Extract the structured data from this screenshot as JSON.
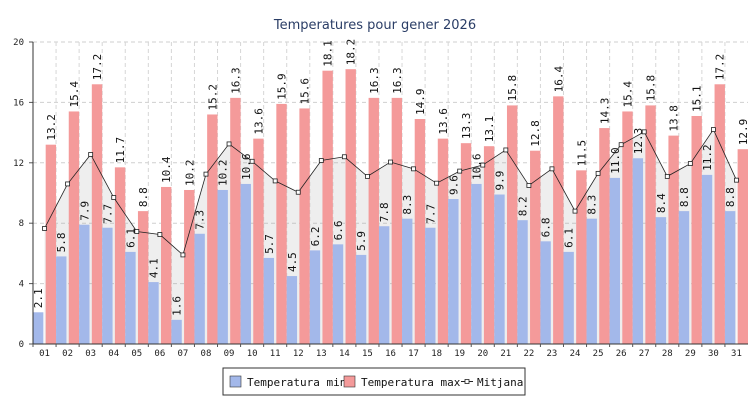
{
  "chart_data": {
    "type": "bar",
    "title": "Temperatures pour gener 2026",
    "xlabel": "",
    "ylabel": "",
    "ylim": [
      0,
      20
    ],
    "yticks": [
      0,
      4,
      8,
      12,
      16,
      20
    ],
    "grid": true,
    "legend_position": "bottom",
    "categories": [
      "01",
      "02",
      "03",
      "04",
      "05",
      "06",
      "07",
      "08",
      "09",
      "10",
      "11",
      "12",
      "13",
      "14",
      "15",
      "16",
      "17",
      "18",
      "19",
      "20",
      "21",
      "22",
      "23",
      "24",
      "25",
      "26",
      "27",
      "28",
      "29",
      "30",
      "31"
    ],
    "series": [
      {
        "name": "Temperatura min",
        "type": "bar",
        "color": "#a3b8ea",
        "values": [
          2.1,
          5.8,
          7.9,
          7.7,
          6.1,
          4.1,
          1.6,
          7.3,
          10.2,
          10.6,
          5.7,
          4.5,
          6.2,
          6.6,
          5.9,
          7.8,
          8.3,
          7.7,
          9.6,
          10.6,
          9.9,
          8.2,
          6.8,
          6.1,
          8.3,
          11.0,
          12.3,
          8.4,
          8.8,
          11.2,
          8.8
        ]
      },
      {
        "name": "Temperatura max",
        "type": "bar",
        "color": "#f49a9a",
        "values": [
          13.2,
          15.4,
          17.2,
          11.7,
          8.8,
          10.4,
          10.2,
          15.2,
          16.3,
          13.6,
          15.9,
          15.6,
          18.1,
          18.2,
          16.3,
          16.3,
          14.9,
          13.6,
          13.3,
          13.1,
          15.8,
          12.8,
          16.4,
          11.5,
          14.3,
          15.4,
          15.8,
          13.8,
          15.1,
          17.2,
          12.9
        ]
      },
      {
        "name": "Mitjana",
        "type": "line",
        "color": "#222222",
        "values": [
          7.65,
          10.6,
          12.55,
          9.7,
          7.45,
          7.25,
          5.9,
          11.25,
          13.25,
          12.1,
          10.8,
          10.05,
          12.15,
          12.4,
          11.1,
          12.05,
          11.6,
          10.65,
          11.45,
          11.85,
          12.85,
          10.5,
          11.6,
          8.8,
          11.3,
          13.2,
          14.05,
          11.1,
          11.95,
          14.2,
          10.85
        ]
      }
    ],
    "legend": [
      "Temperatura min",
      "Temperatura max",
      "Mitjana"
    ]
  }
}
